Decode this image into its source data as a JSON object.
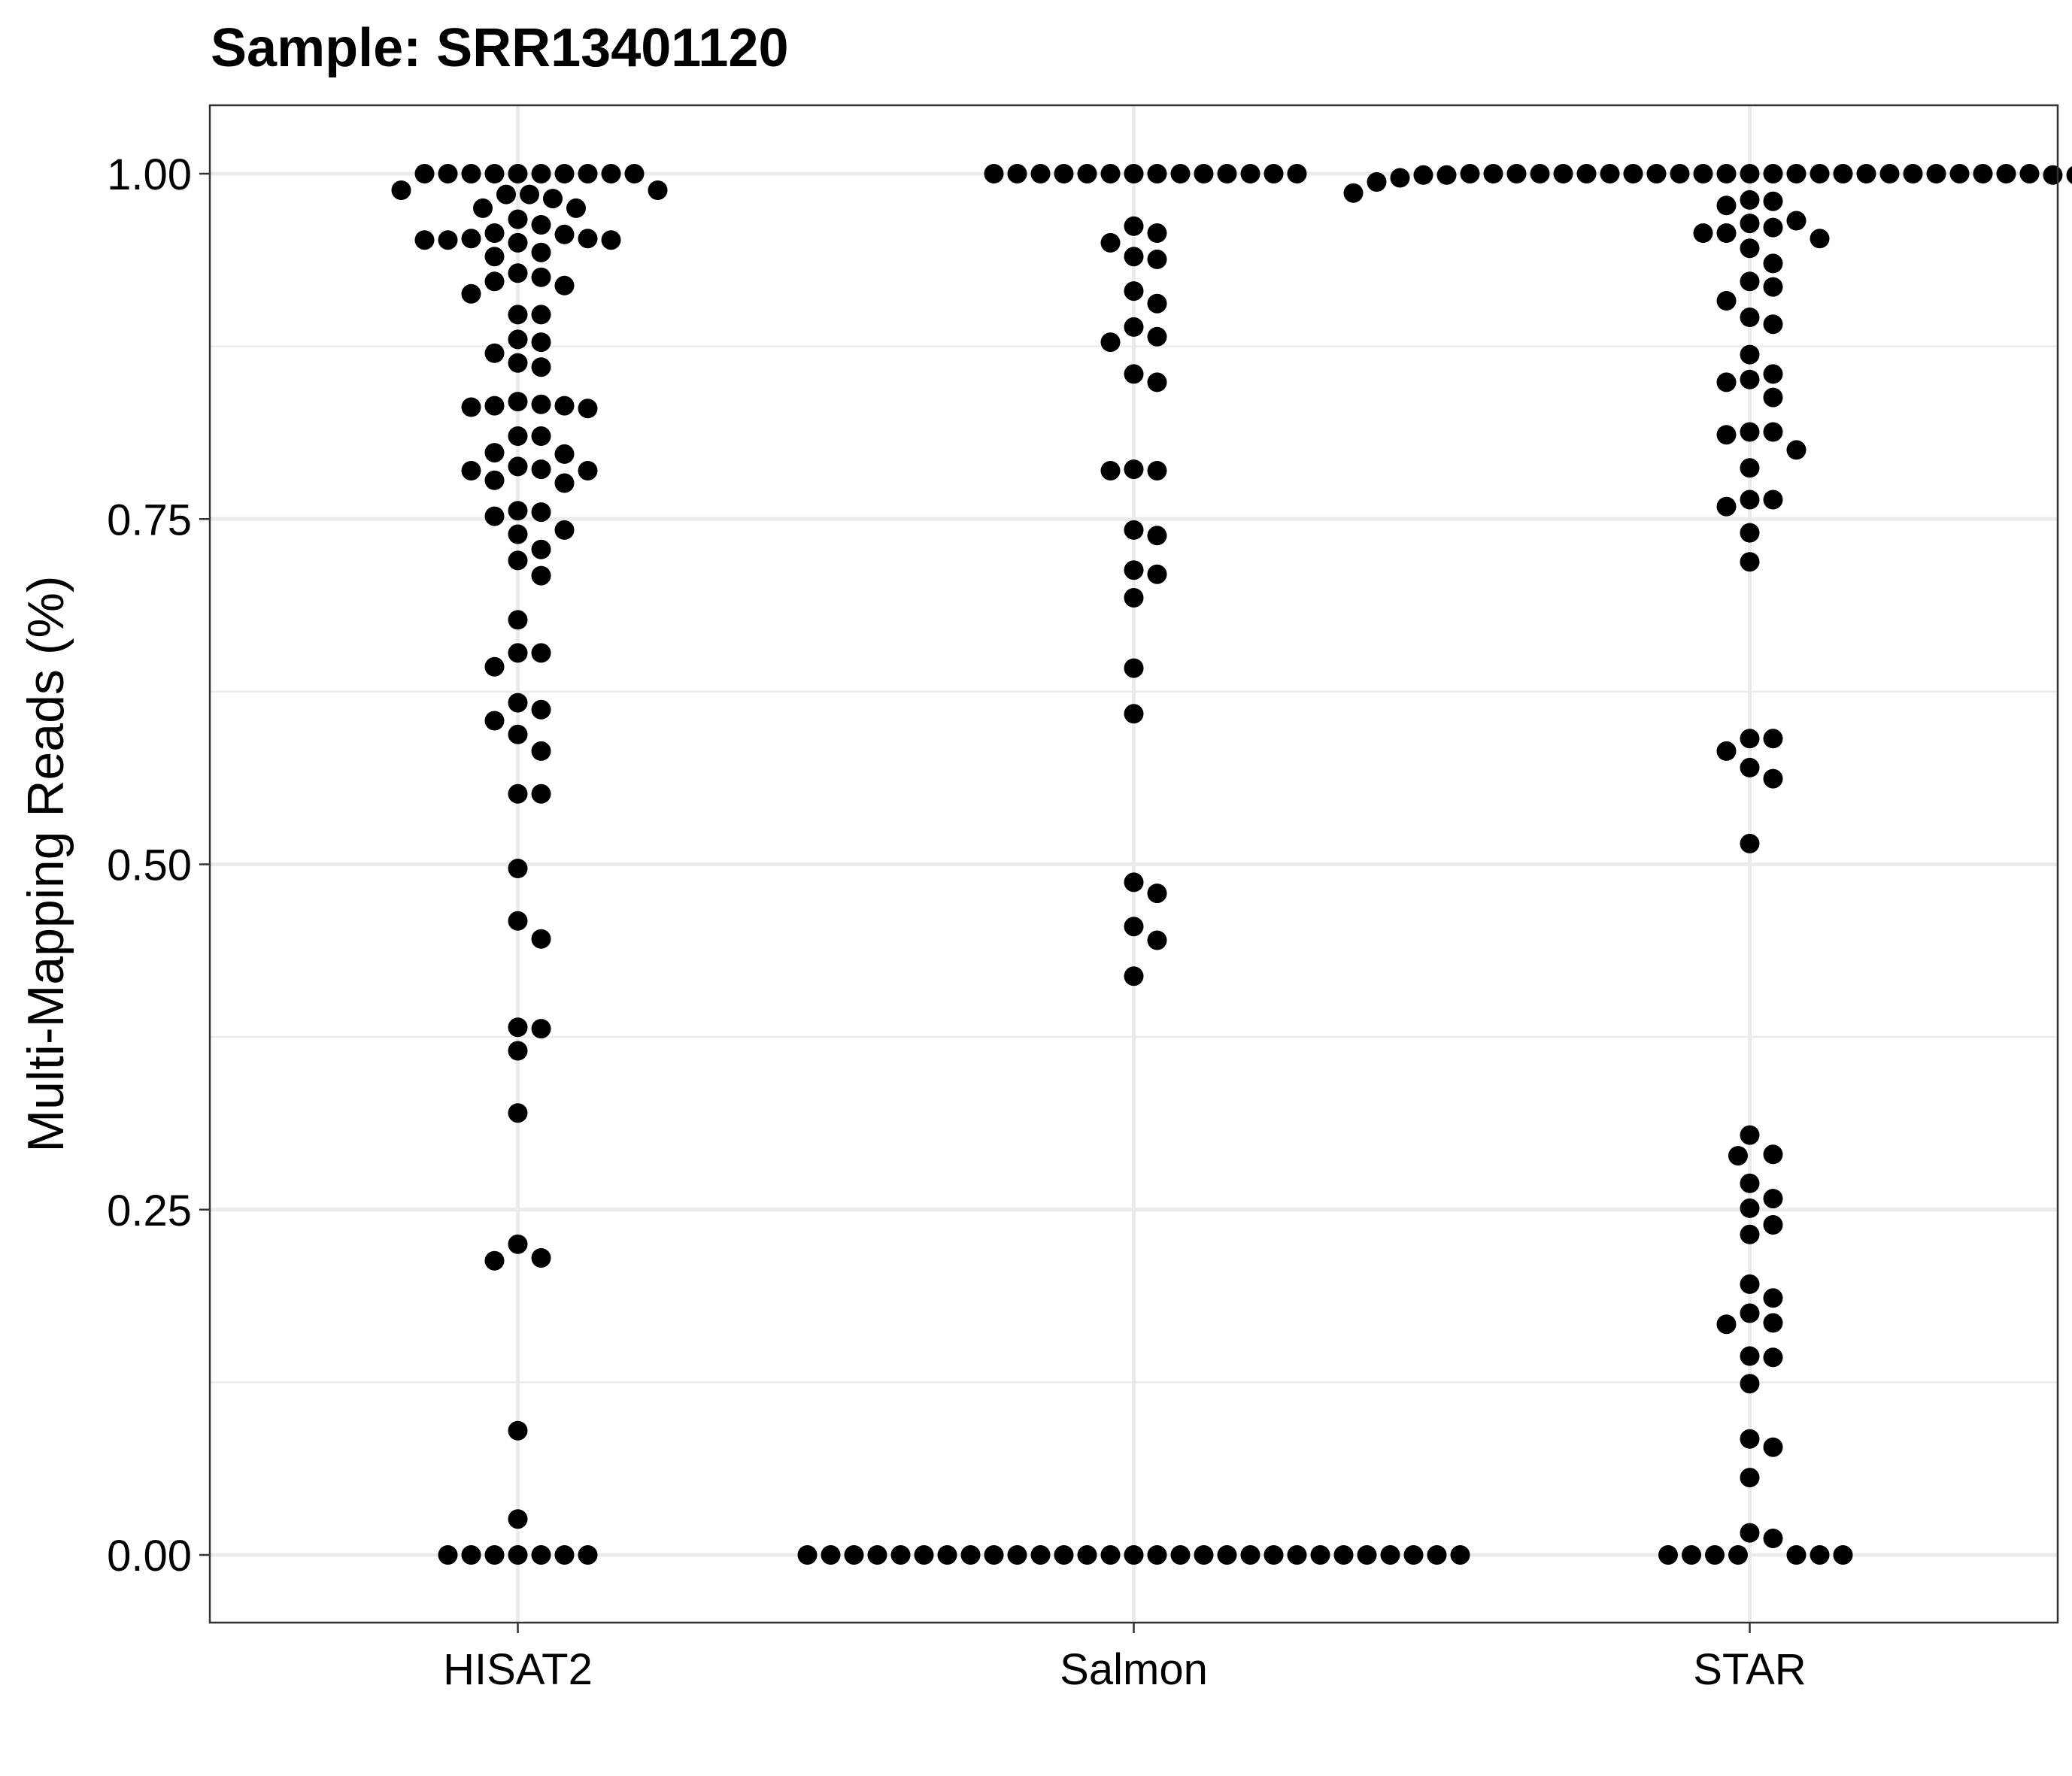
{
  "chart_data": {
    "type": "scatter",
    "subtype": "beeswarm",
    "title": "Sample: SRR13401120",
    "xlabel": "",
    "ylabel": "Multi-Mapping Reads (%)",
    "categories": [
      "HISAT2",
      "Salmon",
      "STAR"
    ],
    "ylim": [
      -0.05,
      1.05
    ],
    "yticks": [
      0.0,
      0.25,
      0.5,
      0.75,
      1.0
    ],
    "ytick_labels": [
      "0.00",
      "0.25",
      "0.50",
      "0.75",
      "1.00"
    ],
    "grid": true,
    "colors": {
      "points": "#000000",
      "grid": "#ebebeb",
      "border": "#333333"
    },
    "series": [
      {
        "category": "HISAT2",
        "values": [
          0.982,
          0.952,
          0.925,
          0.95,
          1.0,
          0.988,
          0.963,
          0.83,
          0.785,
          0.87,
          0.94,
          1.0,
          0.833,
          0.728,
          0.755,
          0.797,
          0.985,
          0.898,
          0.956,
          0.832,
          1.0,
          0.953,
          0.742,
          0.786,
          0.88,
          0.776,
          0.653,
          1.0,
          0.551,
          0.446,
          0.975,
          0.86,
          0.643,
          0.612,
          0.81,
          0.497,
          0.594,
          0.32,
          0.215,
          0.09,
          1.0,
          0.919,
          0.709,
          0.381,
          0.928,
          0.739,
          0.459,
          0.213,
          0.831,
          0.985,
          0.617,
          0.365,
          0.582,
          0.225,
          0.785,
          0.551,
          0.382,
          0.953,
          0.878,
          0.677,
          0.026,
          0.756,
          1.0,
          0.653,
          0.835,
          0.604,
          0.952,
          0.798,
          1.0,
          0.752,
          0.913,
          0.832,
          0.967,
          1.0,
          0.72,
          0.788,
          0.943,
          0.778,
          0.898,
          0.863,
          0.988,
          1.0,
          0.81,
          0.957,
          1.0,
          0.952,
          0.922,
          0.975,
          0,
          0,
          0,
          0,
          0,
          0,
          0
        ]
      },
      {
        "category": "Salmon",
        "values": [
          1.0,
          0.906,
          1.0,
          0.95,
          0.785,
          1.0,
          1.0,
          0.855,
          0.938,
          0.71,
          1.0,
          0.487,
          0.786,
          0.962,
          0.419,
          0.738,
          0.642,
          1.0,
          1.0,
          0.609,
          1.0,
          0.455,
          0.915,
          0.785,
          0.445,
          0.882,
          0.713,
          1.0,
          0.693,
          0.479,
          0.878,
          0.957,
          0.742,
          1.0,
          0.849,
          1.0,
          0.94,
          1.0,
          0.889,
          1.0,
          1.0,
          0,
          0,
          0,
          0,
          0,
          0,
          0,
          0,
          0,
          0,
          0,
          0,
          0,
          0,
          0,
          0,
          0,
          0,
          0,
          0,
          0,
          0,
          0,
          0,
          0,
          0,
          0,
          0,
          0
        ]
      },
      {
        "category": "STAR",
        "values": [
          0.98,
          1.0,
          1.0,
          0.999,
          1.0,
          0.994,
          1.0,
          0.946,
          1.0,
          1.0,
          1.0,
          1.0,
          0.986,
          0.961,
          0.908,
          1.0,
          0.855,
          1.0,
          0.999,
          0.999,
          0.957,
          0.787,
          0.891,
          0.998,
          0.813,
          1.0,
          0.74,
          0.922,
          0.811,
          1.0,
          0.764,
          0.966,
          0.849,
          0.981,
          1.0,
          0.869,
          0.8,
          0.759,
          0.719,
          0.997,
          0.838,
          1.0,
          0.953,
          0.813,
          0.997,
          0.918,
          1.0,
          0.764,
          1.0,
          0.896,
          0.851,
          1.0,
          1.0,
          0.964,
          0.991,
          1.0,
          1.0,
          1.0,
          1.0,
          0.999,
          0.957,
          1.0,
          0.935,
          1.0,
          1.0,
          0.977,
          0.582,
          0.591,
          0.591,
          0.562,
          0.515,
          0.57,
          0.304,
          0.289,
          0.29,
          0.258,
          0.239,
          0.269,
          0.232,
          0.251,
          0.196,
          0.175,
          0.167,
          0.168,
          0.186,
          0.143,
          0.144,
          0.124,
          0.084,
          0.078,
          0.056,
          0.012,
          0.016,
          0,
          0,
          0,
          0,
          0,
          0,
          0
        ]
      }
    ]
  }
}
